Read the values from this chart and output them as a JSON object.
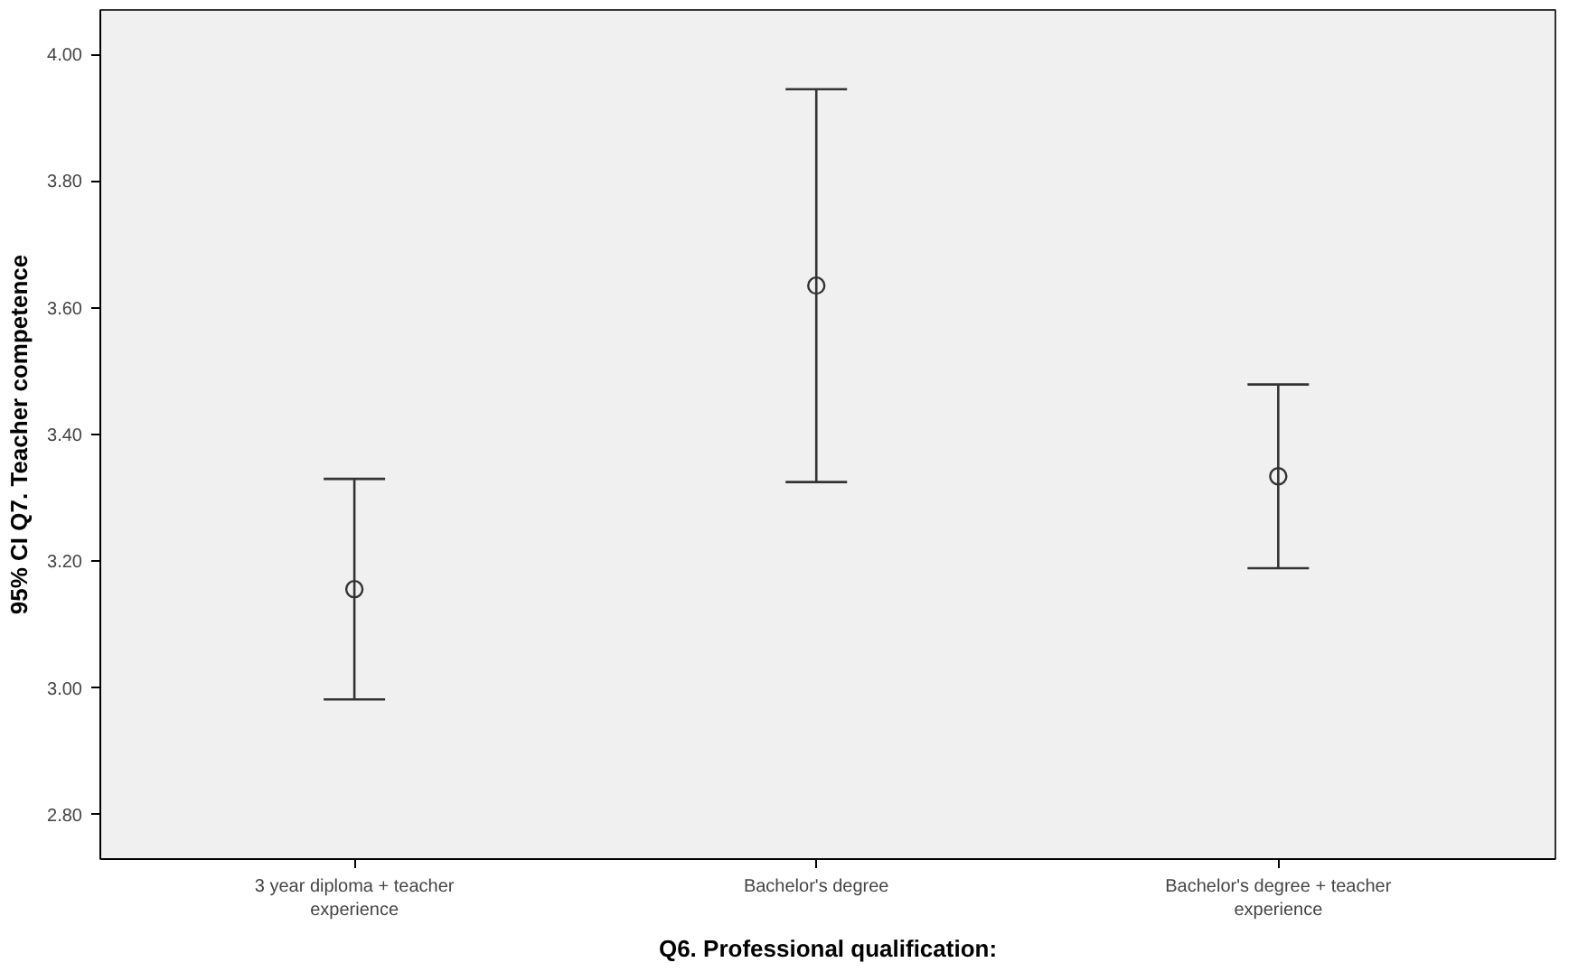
{
  "chart_data": {
    "type": "scatter",
    "xlabel": "Q6. Professional qualification:",
    "ylabel": "95% CI Q7. Teacher competence",
    "categories": [
      "3 year diploma + teacher\nexperience",
      "Bachelor's degree",
      "Bachelor's degree + teacher\nexperience"
    ],
    "values": [
      3.156,
      3.635,
      3.334
    ],
    "errors": [
      0.174,
      0.31,
      0.145
    ],
    "color": "#333333",
    "marker": "circle",
    "ylim": [
      2.73,
      4.07
    ],
    "yticks": [
      {
        "value": 2.8,
        "label": "2.80"
      },
      {
        "value": 3.0,
        "label": "3.00"
      },
      {
        "value": 3.2,
        "label": "3.20"
      },
      {
        "value": 3.4,
        "label": "3.40"
      },
      {
        "value": 3.6,
        "label": "3.60"
      },
      {
        "value": 3.8,
        "label": "3.80"
      },
      {
        "value": 4.0,
        "label": "4.00"
      }
    ],
    "grid": false
  }
}
